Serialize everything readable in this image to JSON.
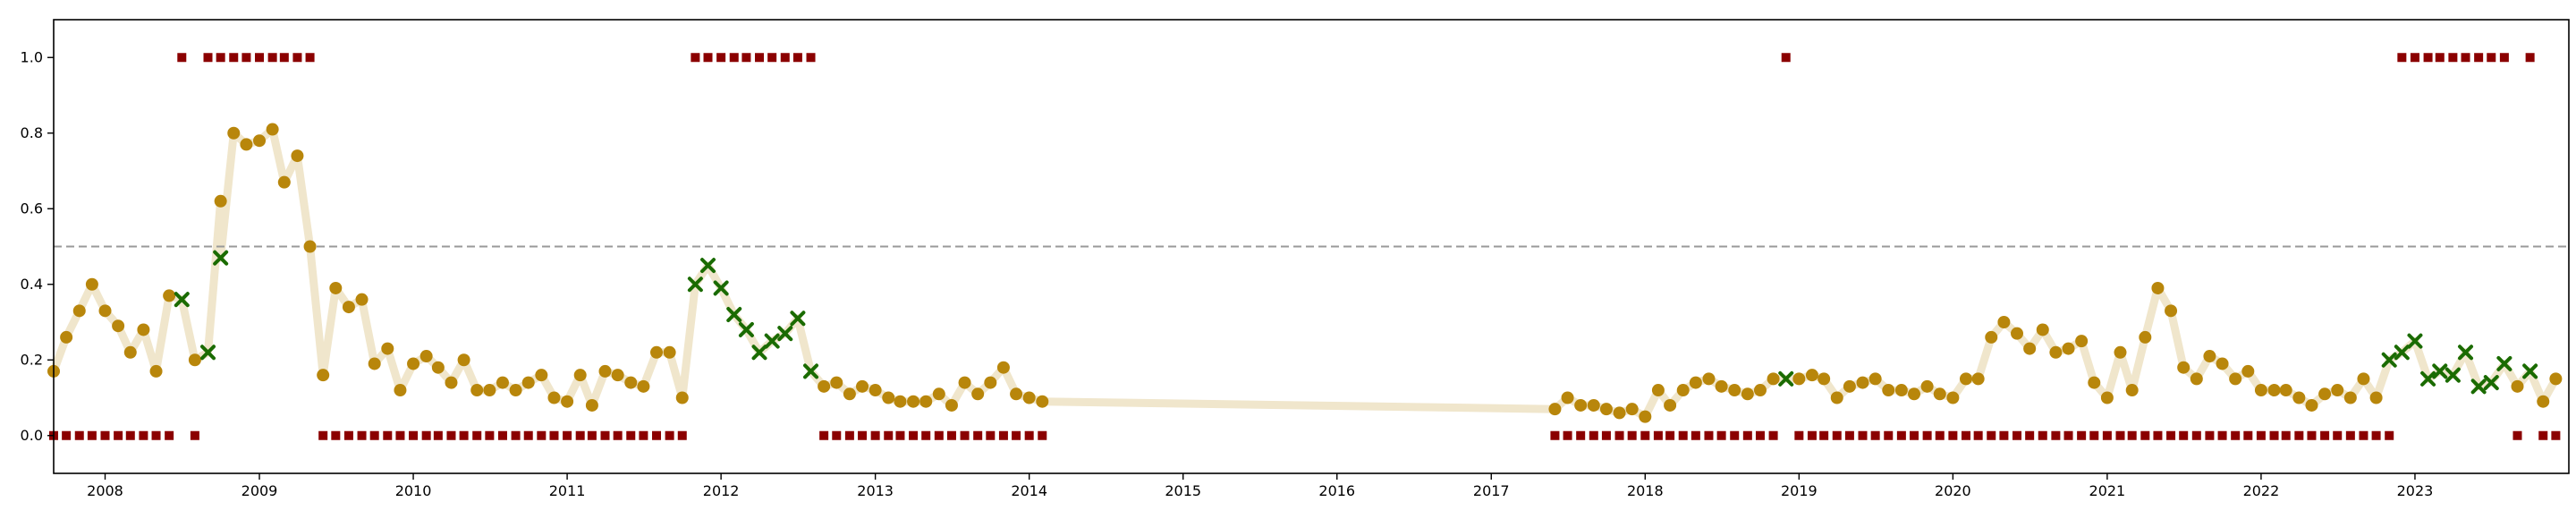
{
  "chart_data": {
    "type": "scatter",
    "title": "",
    "xlabel": "",
    "ylabel": "",
    "xlim": [
      "2007-09-01",
      "2024-01-01"
    ],
    "ylim": [
      -0.1,
      1.1
    ],
    "x_ticks": [
      "2008-01-01",
      "2009-01-01",
      "2010-01-01",
      "2011-01-01",
      "2012-01-01",
      "2013-01-01",
      "2014-01-01",
      "2015-01-01",
      "2016-01-01",
      "2017-01-01",
      "2018-01-01",
      "2019-01-01",
      "2020-01-01",
      "2021-01-01",
      "2022-01-01",
      "2023-01-01"
    ],
    "x_tick_labels": [
      "2008",
      "2009",
      "2010",
      "2011",
      "2012",
      "2013",
      "2014",
      "2015",
      "2016",
      "2017",
      "2018",
      "2019",
      "2020",
      "2021",
      "2022",
      "2023"
    ],
    "y_ticks": [
      0.0,
      0.2,
      0.4,
      0.6,
      0.8,
      1.0
    ],
    "y_tick_labels": [
      "0.0",
      "0.2",
      "0.4",
      "0.6",
      "0.8",
      "1.0"
    ],
    "threshold": 0.5,
    "grid": false,
    "colors": {
      "line": "#f0e6cc",
      "point": "#b8860b",
      "cross": "#1a6b00",
      "label_marker": "#8b0000",
      "threshold": "#999999"
    },
    "series": [
      {
        "marker": "circle",
        "x": [
          "2007-09",
          "2007-10",
          "2007-11",
          "2007-12",
          "2008-01",
          "2008-02",
          "2008-03",
          "2008-04",
          "2008-05",
          "2008-06",
          "2008-08",
          "2008-10",
          "2008-11",
          "2008-12",
          "2009-01",
          "2009-02",
          "2009-03",
          "2009-04",
          "2009-05",
          "2009-06",
          "2009-07",
          "2009-08",
          "2009-09",
          "2009-10",
          "2009-11",
          "2009-12",
          "2010-01",
          "2010-02",
          "2010-03",
          "2010-04",
          "2010-05",
          "2010-06",
          "2010-07",
          "2010-08",
          "2010-09",
          "2010-10",
          "2010-11",
          "2010-12",
          "2011-01",
          "2011-02",
          "2011-03",
          "2011-04",
          "2011-05",
          "2011-06",
          "2011-07",
          "2011-08",
          "2011-09",
          "2011-10",
          "2012-09",
          "2012-10",
          "2012-11",
          "2012-12",
          "2013-01",
          "2013-02",
          "2013-03",
          "2013-04",
          "2013-05",
          "2013-06",
          "2013-07",
          "2013-08",
          "2013-09",
          "2013-10",
          "2013-11",
          "2013-12",
          "2014-01",
          "2014-02",
          "2017-06",
          "2017-07",
          "2017-08",
          "2017-09",
          "2017-10",
          "2017-11",
          "2017-12",
          "2018-01",
          "2018-02",
          "2018-03",
          "2018-04",
          "2018-05",
          "2018-06",
          "2018-07",
          "2018-08",
          "2018-09",
          "2018-10",
          "2018-11",
          "2019-01",
          "2019-02",
          "2019-03",
          "2019-04",
          "2019-05",
          "2019-06",
          "2019-07",
          "2019-08",
          "2019-09",
          "2019-10",
          "2019-11",
          "2019-12",
          "2020-01",
          "2020-02",
          "2020-03",
          "2020-04",
          "2020-05",
          "2020-06",
          "2020-07",
          "2020-08",
          "2020-09",
          "2020-10",
          "2020-11",
          "2020-12",
          "2021-01",
          "2021-02",
          "2021-03",
          "2021-04",
          "2021-05",
          "2021-06",
          "2021-07",
          "2021-08",
          "2021-09",
          "2021-10",
          "2021-11",
          "2021-12",
          "2022-01",
          "2022-02",
          "2022-03",
          "2022-04",
          "2022-05",
          "2022-06",
          "2022-07",
          "2022-08",
          "2022-09",
          "2022-10",
          "2023-09",
          "2023-11",
          "2023-12"
        ],
        "y": [
          0.17,
          0.26,
          0.33,
          0.4,
          0.33,
          0.29,
          0.22,
          0.28,
          0.17,
          0.37,
          0.2,
          0.62,
          0.8,
          0.77,
          0.78,
          0.81,
          0.67,
          0.74,
          0.5,
          0.16,
          0.39,
          0.34,
          0.36,
          0.19,
          0.23,
          0.12,
          0.19,
          0.21,
          0.18,
          0.14,
          0.2,
          0.12,
          0.12,
          0.14,
          0.12,
          0.14,
          0.16,
          0.1,
          0.09,
          0.16,
          0.08,
          0.17,
          0.16,
          0.14,
          0.13,
          0.22,
          0.22,
          0.1,
          0.13,
          0.14,
          0.11,
          0.13,
          0.12,
          0.1,
          0.09,
          0.09,
          0.09,
          0.11,
          0.08,
          0.14,
          0.11,
          0.14,
          0.18,
          0.11,
          0.1,
          0.09,
          0.07,
          0.1,
          0.08,
          0.08,
          0.07,
          0.06,
          0.07,
          0.05,
          0.12,
          0.08,
          0.12,
          0.14,
          0.15,
          0.13,
          0.12,
          0.11,
          0.12,
          0.15,
          0.15,
          0.16,
          0.15,
          0.1,
          0.13,
          0.14,
          0.15,
          0.12,
          0.12,
          0.11,
          0.13,
          0.11,
          0.1,
          0.15,
          0.15,
          0.26,
          0.3,
          0.27,
          0.23,
          0.28,
          0.22,
          0.23,
          0.25,
          0.14,
          0.1,
          0.22,
          0.12,
          0.26,
          0.39,
          0.33,
          0.18,
          0.15,
          0.21,
          0.19,
          0.15,
          0.17,
          0.12,
          0.12,
          0.12,
          0.1,
          0.08,
          0.11,
          0.12,
          0.1,
          0.15,
          0.1,
          0.13,
          0.09,
          0.15
        ]
      },
      {
        "marker": "cross",
        "x": [
          "2008-07",
          "2008-09",
          "2008-10",
          "2011-11",
          "2011-12",
          "2012-01",
          "2012-02",
          "2012-03",
          "2012-04",
          "2012-05",
          "2012-06",
          "2012-07",
          "2012-08",
          "2018-12",
          "2022-11",
          "2022-12",
          "2023-01",
          "2023-02",
          "2023-03",
          "2023-04",
          "2023-05",
          "2023-06",
          "2023-07",
          "2023-08",
          "2023-10"
        ],
        "y": [
          0.36,
          0.22,
          0.47,
          0.4,
          0.45,
          0.39,
          0.32,
          0.28,
          0.22,
          0.25,
          0.27,
          0.31,
          0.17,
          0.15,
          0.2,
          0.22,
          0.25,
          0.15,
          0.17,
          0.16,
          0.22,
          0.13,
          0.14,
          0.19,
          0.17
        ]
      },
      {
        "marker": "square",
        "x": [
          "2007-09",
          "2007-10",
          "2007-11",
          "2007-12",
          "2008-01",
          "2008-02",
          "2008-03",
          "2008-04",
          "2008-05",
          "2008-06",
          "2008-07",
          "2008-08",
          "2008-09",
          "2008-10",
          "2008-11",
          "2008-12",
          "2009-01",
          "2009-02",
          "2009-03",
          "2009-04",
          "2009-05",
          "2009-06",
          "2009-07",
          "2009-08",
          "2009-09",
          "2009-10",
          "2009-11",
          "2009-12",
          "2010-01",
          "2010-02",
          "2010-03",
          "2010-04",
          "2010-05",
          "2010-06",
          "2010-07",
          "2010-08",
          "2010-09",
          "2010-10",
          "2010-11",
          "2010-12",
          "2011-01",
          "2011-02",
          "2011-03",
          "2011-04",
          "2011-05",
          "2011-06",
          "2011-07",
          "2011-08",
          "2011-09",
          "2011-10",
          "2011-11",
          "2011-12",
          "2012-01",
          "2012-02",
          "2012-03",
          "2012-04",
          "2012-05",
          "2012-06",
          "2012-07",
          "2012-08",
          "2012-09",
          "2012-10",
          "2012-11",
          "2012-12",
          "2013-01",
          "2013-02",
          "2013-03",
          "2013-04",
          "2013-05",
          "2013-06",
          "2013-07",
          "2013-08",
          "2013-09",
          "2013-10",
          "2013-11",
          "2013-12",
          "2014-01",
          "2014-02",
          "2017-06",
          "2017-07",
          "2017-08",
          "2017-09",
          "2017-10",
          "2017-11",
          "2017-12",
          "2018-01",
          "2018-02",
          "2018-03",
          "2018-04",
          "2018-05",
          "2018-06",
          "2018-07",
          "2018-08",
          "2018-09",
          "2018-10",
          "2018-11",
          "2018-12",
          "2019-01",
          "2019-02",
          "2019-03",
          "2019-04",
          "2019-05",
          "2019-06",
          "2019-07",
          "2019-08",
          "2019-09",
          "2019-10",
          "2019-11",
          "2019-12",
          "2020-01",
          "2020-02",
          "2020-03",
          "2020-04",
          "2020-05",
          "2020-06",
          "2020-07",
          "2020-08",
          "2020-09",
          "2020-10",
          "2020-11",
          "2020-12",
          "2021-01",
          "2021-02",
          "2021-03",
          "2021-04",
          "2021-05",
          "2021-06",
          "2021-07",
          "2021-08",
          "2021-09",
          "2021-10",
          "2021-11",
          "2021-12",
          "2022-01",
          "2022-02",
          "2022-03",
          "2022-04",
          "2022-05",
          "2022-06",
          "2022-07",
          "2022-08",
          "2022-09",
          "2022-10",
          "2022-11",
          "2022-12",
          "2023-01",
          "2023-02",
          "2023-03",
          "2023-04",
          "2023-05",
          "2023-06",
          "2023-07",
          "2023-08",
          "2023-09",
          "2023-10",
          "2023-11",
          "2023-12"
        ],
        "y": [
          0,
          0,
          0,
          0,
          0,
          0,
          0,
          0,
          0,
          0,
          1,
          0,
          1,
          1,
          1,
          1,
          1,
          1,
          1,
          1,
          1,
          0,
          0,
          0,
          0,
          0,
          0,
          0,
          0,
          0,
          0,
          0,
          0,
          0,
          0,
          0,
          0,
          0,
          0,
          0,
          0,
          0,
          0,
          0,
          0,
          0,
          0,
          0,
          0,
          0,
          1,
          1,
          1,
          1,
          1,
          1,
          1,
          1,
          1,
          1,
          0,
          0,
          0,
          0,
          0,
          0,
          0,
          0,
          0,
          0,
          0,
          0,
          0,
          0,
          0,
          0,
          0,
          0,
          0,
          0,
          0,
          0,
          0,
          0,
          0,
          0,
          0,
          0,
          0,
          0,
          0,
          0,
          0,
          0,
          0,
          0,
          1,
          0,
          0,
          0,
          0,
          0,
          0,
          0,
          0,
          0,
          0,
          0,
          0,
          0,
          0,
          0,
          0,
          0,
          0,
          0,
          0,
          0,
          0,
          0,
          0,
          0,
          0,
          0,
          0,
          0,
          0,
          0,
          0,
          0,
          0,
          0,
          0,
          0,
          0,
          0,
          0,
          0,
          0,
          0,
          0,
          0,
          0,
          0,
          1,
          1,
          1,
          1,
          1,
          1,
          1,
          1,
          1,
          0,
          1,
          0,
          0
        ]
      }
    ]
  }
}
